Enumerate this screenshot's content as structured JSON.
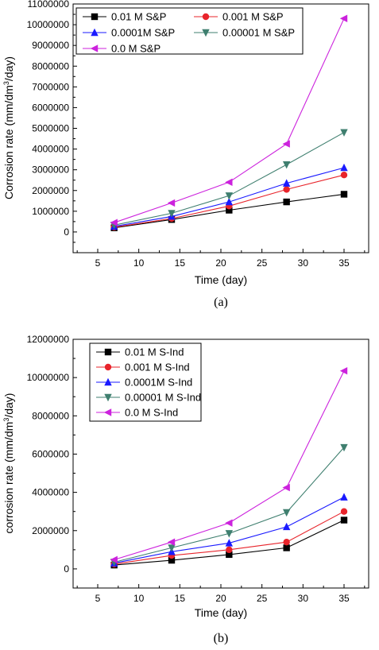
{
  "colors": {
    "black": "#000000",
    "red": "#e8242b",
    "blue": "#1a1aff",
    "teal": "#3f7f6f",
    "magenta": "#cc22dd"
  },
  "chart_data": [
    {
      "type": "line",
      "panel_label": "(a)",
      "xlabel": "Time (day)",
      "ylabel": "Corrosion rate (mm/dm³/day)",
      "ylabel_parts": {
        "pre": "Corrosion rate (mm/dm",
        "sup": "3",
        "post": "/day)"
      },
      "xlim": [
        2,
        38
      ],
      "ylim": [
        -1000000,
        11000000
      ],
      "xticks": [
        5,
        10,
        15,
        20,
        25,
        30,
        35
      ],
      "yticks": [
        0,
        1000000,
        2000000,
        3000000,
        4000000,
        5000000,
        6000000,
        7000000,
        8000000,
        9000000,
        10000000,
        11000000
      ],
      "ytick_labels": [
        "0",
        "1000000",
        "2000000",
        "3000000",
        "4000000",
        "5000000",
        "6000000",
        "7000000",
        "8000000",
        "9000000",
        "10000000",
        "11000000"
      ],
      "x": [
        7,
        14,
        21,
        28,
        35
      ],
      "legend_position": "top-left",
      "series": [
        {
          "name": "0.01 M S&P",
          "marker": "square",
          "color": "#000000",
          "values": [
            200000,
            600000,
            1050000,
            1450000,
            1820000
          ]
        },
        {
          "name": "0.001 M S&P",
          "marker": "circle",
          "color": "#e8242b",
          "values": [
            230000,
            650000,
            1250000,
            2050000,
            2750000
          ]
        },
        {
          "name": "0.0001M S&P",
          "marker": "triangle-up",
          "color": "#1a1aff",
          "values": [
            270000,
            750000,
            1450000,
            2350000,
            3100000
          ]
        },
        {
          "name": "0.00001 M S&P",
          "marker": "triangle-down",
          "color": "#3f7f6f",
          "values": [
            330000,
            900000,
            1750000,
            3250000,
            4800000
          ]
        },
        {
          "name": "0.0 M S&P",
          "marker": "triangle-left",
          "color": "#cc22dd",
          "values": [
            450000,
            1400000,
            2400000,
            4250000,
            10300000
          ]
        }
      ]
    },
    {
      "type": "line",
      "panel_label": "(b)",
      "xlabel": "Time (day)",
      "ylabel": "corrosion rate (mm/dm³/day)",
      "ylabel_parts": {
        "pre": "corrosion rate (mm/dm",
        "sup": "3",
        "post": "/day)"
      },
      "xlim": [
        2,
        38
      ],
      "ylim": [
        -1000000,
        12000000
      ],
      "xticks": [
        5,
        10,
        15,
        20,
        25,
        30,
        35
      ],
      "yticks": [
        0,
        2000000,
        4000000,
        6000000,
        8000000,
        10000000,
        12000000
      ],
      "ytick_labels": [
        "0",
        "2000000",
        "4000000",
        "6000000",
        "8000000",
        "10000000",
        "12000000"
      ],
      "x": [
        7,
        14,
        21,
        28,
        35
      ],
      "legend_position": "top-left",
      "series": [
        {
          "name": "0.01 M S-Ind",
          "marker": "square",
          "color": "#000000",
          "values": [
            200000,
            450000,
            750000,
            1100000,
            2550000
          ]
        },
        {
          "name": "0.001 M S-Ind",
          "marker": "circle",
          "color": "#e8242b",
          "values": [
            250000,
            700000,
            1000000,
            1400000,
            3000000
          ]
        },
        {
          "name": "0.0001M S-Ind",
          "marker": "triangle-up",
          "color": "#1a1aff",
          "values": [
            300000,
            900000,
            1350000,
            2200000,
            3750000
          ]
        },
        {
          "name": "0.00001 M S-Ind",
          "marker": "triangle-down",
          "color": "#3f7f6f",
          "values": [
            350000,
            1100000,
            1850000,
            2950000,
            6350000
          ]
        },
        {
          "name": "0.0 M S-Ind",
          "marker": "triangle-left",
          "color": "#cc22dd",
          "values": [
            480000,
            1400000,
            2400000,
            4250000,
            10350000
          ]
        }
      ]
    }
  ]
}
